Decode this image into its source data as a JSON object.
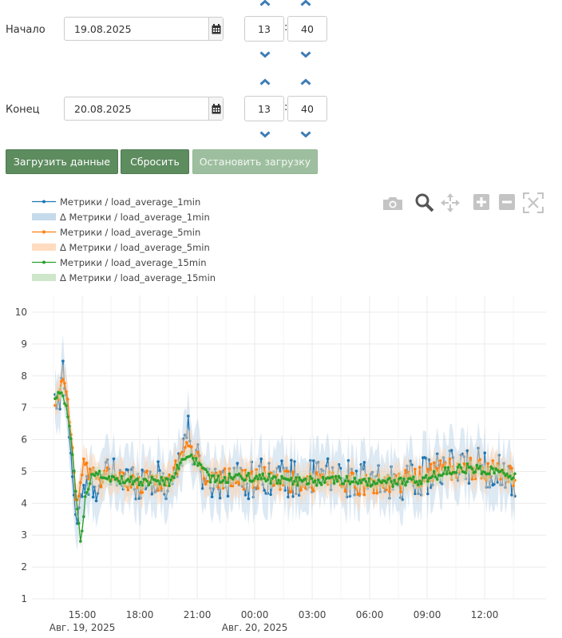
{
  "filters": {
    "start": {
      "label": "Начало",
      "date": "19.08.2025",
      "hour": "13",
      "minute": "40"
    },
    "end": {
      "label": "Конец",
      "date": "20.08.2025",
      "hour": "13",
      "minute": "40"
    },
    "time_separator": ":"
  },
  "actions": {
    "load": "Загрузить данные",
    "reset": "Сбросить",
    "stop": "Остановить загрузку"
  },
  "modebar": [
    "camera-icon",
    "zoom-icon",
    "pan-icon",
    "zoom-in-icon",
    "zoom-out-icon",
    "autoscale-icon"
  ],
  "colors": {
    "series1": "#1f77b4",
    "series2": "#ff7f0e",
    "series3": "#2ca02c",
    "button": "#5d8c5f"
  },
  "chart_data": {
    "type": "line",
    "ylim": [
      1,
      10
    ],
    "y_ticks": [
      "1",
      "2",
      "3",
      "4",
      "5",
      "6",
      "7",
      "8",
      "9",
      "10"
    ],
    "x_ticks": [
      "15:00",
      "18:00",
      "21:00",
      "00:00",
      "03:00",
      "06:00",
      "09:00",
      "12:00"
    ],
    "x_date_labels": [
      {
        "under": "15:00",
        "text": "Авг. 19, 2025"
      },
      {
        "under": "00:00",
        "text": "Авг. 20, 2025"
      }
    ],
    "x_range_hours": [
      "13:35",
      "14:00 next day"
    ],
    "grid": true,
    "legend_position": "top-left",
    "series": [
      {
        "name": "Метрики / load_average_1min",
        "mode": "lines+markers",
        "color": "#1f77b4",
        "anchors": [
          [
            0,
            7.2
          ],
          [
            0.25,
            7.0
          ],
          [
            0.4,
            8.4
          ],
          [
            0.6,
            7.3
          ],
          [
            0.8,
            5.8
          ],
          [
            1.0,
            4.2
          ],
          [
            1.1,
            3.3
          ],
          [
            1.25,
            3.9
          ],
          [
            1.5,
            4.4
          ],
          [
            2.0,
            4.6
          ],
          [
            3,
            4.9
          ],
          [
            4,
            4.7
          ],
          [
            5,
            4.8
          ],
          [
            6,
            4.6
          ],
          [
            6.6,
            5.6
          ],
          [
            6.9,
            6.3
          ],
          [
            7.4,
            5.3
          ],
          [
            8,
            4.7
          ],
          [
            9,
            4.8
          ],
          [
            10,
            4.7
          ],
          [
            11,
            4.9
          ],
          [
            12,
            4.8
          ],
          [
            13,
            4.7
          ],
          [
            14,
            4.9
          ],
          [
            15,
            4.8
          ],
          [
            16,
            4.7
          ],
          [
            17,
            4.6
          ],
          [
            18,
            4.7
          ],
          [
            19,
            4.8
          ],
          [
            20,
            5.0
          ],
          [
            21,
            5.1
          ],
          [
            22,
            5.2
          ],
          [
            23,
            5.0
          ],
          [
            24,
            4.8
          ]
        ],
        "noise": 0.6
      },
      {
        "name": "Δ Метрики / load_average_1min",
        "mode": "band",
        "color": "#9fc1de"
      },
      {
        "name": "Метрики / load_average_5min",
        "mode": "lines+markers",
        "color": "#ff7f0e",
        "anchors": [
          [
            0,
            7.2
          ],
          [
            0.25,
            7.4
          ],
          [
            0.4,
            7.9
          ],
          [
            0.6,
            7.5
          ],
          [
            0.8,
            6.3
          ],
          [
            1.0,
            5.0
          ],
          [
            1.1,
            3.8
          ],
          [
            1.25,
            4.3
          ],
          [
            1.5,
            5.3
          ],
          [
            2.0,
            4.8
          ],
          [
            3,
            4.9
          ],
          [
            4,
            4.6
          ],
          [
            5,
            4.7
          ],
          [
            6,
            4.7
          ],
          [
            6.6,
            5.5
          ],
          [
            6.9,
            6.0
          ],
          [
            7.4,
            5.4
          ],
          [
            8,
            4.7
          ],
          [
            9,
            4.8
          ],
          [
            10,
            4.7
          ],
          [
            11,
            4.9
          ],
          [
            12,
            4.7
          ],
          [
            13,
            4.6
          ],
          [
            14,
            4.8
          ],
          [
            15,
            4.7
          ],
          [
            16,
            4.6
          ],
          [
            17,
            4.6
          ],
          [
            18,
            4.7
          ],
          [
            19,
            4.8
          ],
          [
            20,
            5.0
          ],
          [
            21,
            5.1
          ],
          [
            22,
            5.1
          ],
          [
            23,
            5.0
          ],
          [
            24,
            4.8
          ]
        ],
        "noise": 0.35
      },
      {
        "name": "Δ Метрики / load_average_5min",
        "mode": "band",
        "color": "#ffd3b0"
      },
      {
        "name": "Метрики / load_average_15min",
        "mode": "lines+markers",
        "color": "#2ca02c",
        "anchors": [
          [
            0,
            7.3
          ],
          [
            0.3,
            7.5
          ],
          [
            0.6,
            7.0
          ],
          [
            0.8,
            6.2
          ],
          [
            1.0,
            4.9
          ],
          [
            1.25,
            3.3
          ],
          [
            1.35,
            2.7
          ],
          [
            1.6,
            4.4
          ],
          [
            2.0,
            4.9
          ],
          [
            3,
            4.8
          ],
          [
            4,
            4.7
          ],
          [
            5,
            4.7
          ],
          [
            6,
            4.7
          ],
          [
            6.6,
            5.3
          ],
          [
            7.0,
            5.5
          ],
          [
            7.4,
            5.3
          ],
          [
            8,
            4.8
          ],
          [
            9,
            4.8
          ],
          [
            10,
            4.8
          ],
          [
            11,
            4.8
          ],
          [
            12,
            4.7
          ],
          [
            13,
            4.7
          ],
          [
            14,
            4.7
          ],
          [
            15,
            4.7
          ],
          [
            16,
            4.7
          ],
          [
            17,
            4.6
          ],
          [
            18,
            4.7
          ],
          [
            19,
            4.7
          ],
          [
            20,
            4.9
          ],
          [
            21,
            5.1
          ],
          [
            22,
            5.1
          ],
          [
            23,
            5.0
          ],
          [
            24,
            4.8
          ]
        ],
        "noise": 0.15
      },
      {
        "name": "Δ Метрики / load_average_15min",
        "mode": "band",
        "color": "#c9e3c4"
      }
    ]
  }
}
